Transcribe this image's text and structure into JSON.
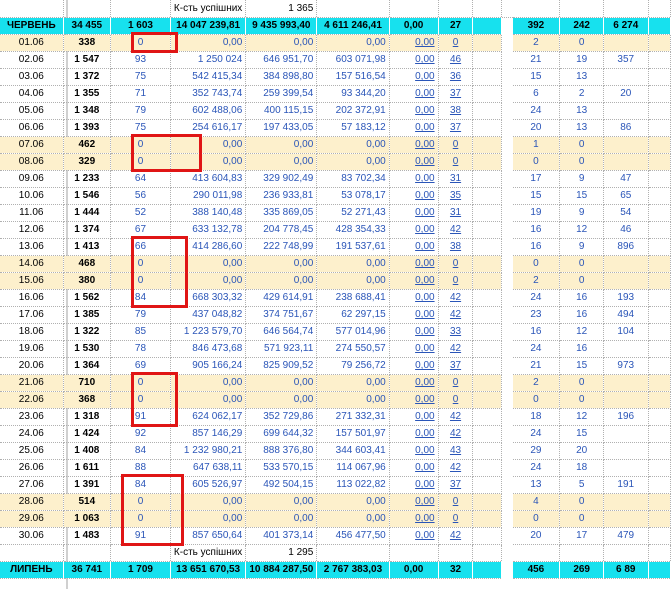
{
  "top_summary": {
    "label": "К-сть успішних",
    "value": "1 365"
  },
  "june_header": {
    "month": "ЧЕРВЕНЬ",
    "cells": [
      "34 455",
      "1 603",
      "14 047 239,81",
      "9 435 993,40",
      "4 611 246,41",
      "0,00",
      "27",
      "392",
      "242",
      "6 274"
    ]
  },
  "rows": [
    {
      "date": "01.06",
      "a": "338",
      "b": "0",
      "c": "0,00",
      "d": "0,00",
      "e": "0,00",
      "f": "0,00",
      "g": "0",
      "h": "2",
      "i": "0",
      "j": "",
      "we": true
    },
    {
      "date": "02.06",
      "a": "1 547",
      "b": "93",
      "c": "1 250 024",
      "d": "646 951,70",
      "e": "603 071,98",
      "f": "0,00",
      "g": "46",
      "h": "21",
      "i": "19",
      "j": "357",
      "we": false
    },
    {
      "date": "03.06",
      "a": "1 372",
      "b": "75",
      "c": "542 415,34",
      "d": "384 898,80",
      "e": "157 516,54",
      "f": "0,00",
      "g": "36",
      "h": "15",
      "i": "13",
      "j": "",
      "we": false
    },
    {
      "date": "04.06",
      "a": "1 355",
      "b": "71",
      "c": "352 743,74",
      "d": "259 399,54",
      "e": "93 344,20",
      "f": "0,00",
      "g": "37",
      "h": "6",
      "i": "2",
      "j": "20",
      "we": false
    },
    {
      "date": "05.06",
      "a": "1 348",
      "b": "79",
      "c": "602 488,06",
      "d": "400 115,15",
      "e": "202 372,91",
      "f": "0,00",
      "g": "38",
      "h": "24",
      "i": "13",
      "j": "",
      "we": false
    },
    {
      "date": "06.06",
      "a": "1 393",
      "b": "75",
      "c": "254 616,17",
      "d": "197 433,05",
      "e": "57 183,12",
      "f": "0,00",
      "g": "37",
      "h": "20",
      "i": "13",
      "j": "86",
      "we": false
    },
    {
      "date": "07.06",
      "a": "462",
      "b": "0",
      "c": "0,00",
      "d": "0,00",
      "e": "0,00",
      "f": "0,00",
      "g": "0",
      "h": "1",
      "i": "0",
      "j": "",
      "we": true
    },
    {
      "date": "08.06",
      "a": "329",
      "b": "0",
      "c": "0,00",
      "d": "0,00",
      "e": "0,00",
      "f": "0,00",
      "g": "0",
      "h": "0",
      "i": "0",
      "j": "",
      "we": true
    },
    {
      "date": "09.06",
      "a": "1 233",
      "b": "64",
      "c": "413 604,83",
      "d": "329 902,49",
      "e": "83 702,34",
      "f": "0,00",
      "g": "31",
      "h": "17",
      "i": "9",
      "j": "47",
      "we": false
    },
    {
      "date": "10.06",
      "a": "1 546",
      "b": "56",
      "c": "290 011,98",
      "d": "236 933,81",
      "e": "53 078,17",
      "f": "0,00",
      "g": "35",
      "h": "15",
      "i": "15",
      "j": "65",
      "we": false
    },
    {
      "date": "11.06",
      "a": "1 444",
      "b": "52",
      "c": "388 140,48",
      "d": "335 869,05",
      "e": "52 271,43",
      "f": "0,00",
      "g": "31",
      "h": "19",
      "i": "9",
      "j": "54",
      "we": false
    },
    {
      "date": "12.06",
      "a": "1 374",
      "b": "67",
      "c": "633 132,78",
      "d": "204 778,45",
      "e": "428 354,33",
      "f": "0,00",
      "g": "42",
      "h": "16",
      "i": "12",
      "j": "46",
      "we": false
    },
    {
      "date": "13.06",
      "a": "1 413",
      "b": "66",
      "c": "414 286,60",
      "d": "222 748,99",
      "e": "191 537,61",
      "f": "0,00",
      "g": "38",
      "h": "16",
      "i": "9",
      "j": "896",
      "we": false
    },
    {
      "date": "14.06",
      "a": "468",
      "b": "0",
      "c": "0,00",
      "d": "0,00",
      "e": "0,00",
      "f": "0,00",
      "g": "0",
      "h": "0",
      "i": "0",
      "j": "",
      "we": true
    },
    {
      "date": "15.06",
      "a": "380",
      "b": "0",
      "c": "0,00",
      "d": "0,00",
      "e": "0,00",
      "f": "0,00",
      "g": "0",
      "h": "2",
      "i": "0",
      "j": "",
      "we": true
    },
    {
      "date": "16.06",
      "a": "1 562",
      "b": "84",
      "c": "668 303,32",
      "d": "429 614,91",
      "e": "238 688,41",
      "f": "0,00",
      "g": "42",
      "h": "24",
      "i": "16",
      "j": "193",
      "we": false
    },
    {
      "date": "17.06",
      "a": "1 385",
      "b": "79",
      "c": "437 048,82",
      "d": "374 751,67",
      "e": "62 297,15",
      "f": "0,00",
      "g": "42",
      "h": "23",
      "i": "16",
      "j": "494",
      "we": false
    },
    {
      "date": "18.06",
      "a": "1 322",
      "b": "85",
      "c": "1 223 579,70",
      "d": "646 564,74",
      "e": "577 014,96",
      "f": "0,00",
      "g": "33",
      "h": "16",
      "i": "12",
      "j": "104",
      "we": false
    },
    {
      "date": "19.06",
      "a": "1 530",
      "b": "78",
      "c": "846 473,68",
      "d": "571 923,11",
      "e": "274 550,57",
      "f": "0,00",
      "g": "42",
      "h": "24",
      "i": "16",
      "j": "",
      "we": false
    },
    {
      "date": "20.06",
      "a": "1 364",
      "b": "69",
      "c": "905 166,24",
      "d": "825 909,52",
      "e": "79 256,72",
      "f": "0,00",
      "g": "37",
      "h": "21",
      "i": "15",
      "j": "973",
      "we": false
    },
    {
      "date": "21.06",
      "a": "710",
      "b": "0",
      "c": "0,00",
      "d": "0,00",
      "e": "0,00",
      "f": "0,00",
      "g": "0",
      "h": "2",
      "i": "0",
      "j": "",
      "we": true
    },
    {
      "date": "22.06",
      "a": "368",
      "b": "0",
      "c": "0,00",
      "d": "0,00",
      "e": "0,00",
      "f": "0,00",
      "g": "0",
      "h": "0",
      "i": "0",
      "j": "",
      "we": true
    },
    {
      "date": "23.06",
      "a": "1 318",
      "b": "91",
      "c": "624 062,17",
      "d": "352 729,86",
      "e": "271 332,31",
      "f": "0,00",
      "g": "42",
      "h": "18",
      "i": "12",
      "j": "196",
      "we": false
    },
    {
      "date": "24.06",
      "a": "1 424",
      "b": "92",
      "c": "857 146,29",
      "d": "699 644,32",
      "e": "157 501,97",
      "f": "0,00",
      "g": "42",
      "h": "24",
      "i": "15",
      "j": "",
      "we": false
    },
    {
      "date": "25.06",
      "a": "1 408",
      "b": "84",
      "c": "1 232 980,21",
      "d": "888 376,80",
      "e": "344 603,41",
      "f": "0,00",
      "g": "43",
      "h": "29",
      "i": "20",
      "j": "",
      "we": false
    },
    {
      "date": "26.06",
      "a": "1 611",
      "b": "88",
      "c": "647 638,11",
      "d": "533 570,15",
      "e": "114 067,96",
      "f": "0,00",
      "g": "42",
      "h": "24",
      "i": "18",
      "j": "",
      "we": false
    },
    {
      "date": "27.06",
      "a": "1 391",
      "b": "84",
      "c": "605 526,97",
      "d": "492 504,15",
      "e": "113 022,82",
      "f": "0,00",
      "g": "37",
      "h": "13",
      "i": "5",
      "j": "191",
      "we": false
    },
    {
      "date": "28.06",
      "a": "514",
      "b": "0",
      "c": "0,00",
      "d": "0,00",
      "e": "0,00",
      "f": "0,00",
      "g": "0",
      "h": "4",
      "i": "0",
      "j": "",
      "we": true
    },
    {
      "date": "29.06",
      "a": "1 063",
      "b": "0",
      "c": "0,00",
      "d": "0,00",
      "e": "0,00",
      "f": "0,00",
      "g": "0",
      "h": "0",
      "i": "0",
      "j": "",
      "we": true
    },
    {
      "date": "30.06",
      "a": "1 483",
      "b": "91",
      "c": "857 650,64",
      "d": "401 373,14",
      "e": "456 477,50",
      "f": "0,00",
      "g": "42",
      "h": "20",
      "i": "17",
      "j": "479",
      "we": false
    }
  ],
  "bottom_summary": {
    "label": "К-сть успішних",
    "value": "1 295"
  },
  "july_header": {
    "month": "ЛИПЕНЬ",
    "cells": [
      "36 741",
      "1 709",
      "13 651 670,53",
      "10 884 287,50",
      "2 767 383,03",
      "0,00",
      "32",
      "456",
      "269",
      "6 89"
    ]
  },
  "colors": {
    "header": "#17e1ee",
    "weekend": "#fdf0cc",
    "highlight": "#e01515",
    "value_blue": "#2a55b8"
  }
}
